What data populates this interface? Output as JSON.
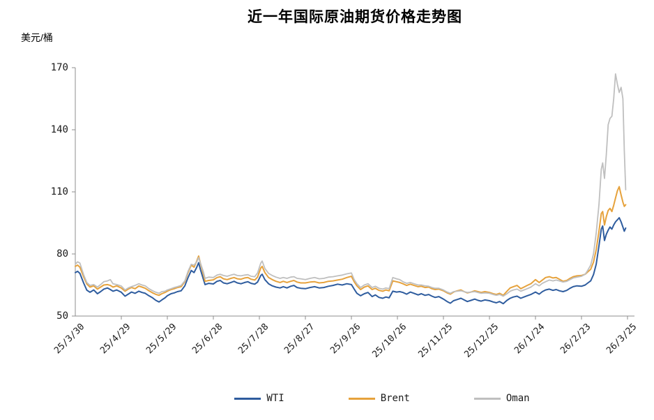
{
  "title": "近一年国际原油期货价格走势图",
  "y_axis": {
    "unit": "美元/桶",
    "ticks": [
      "170",
      "140",
      "110",
      "80",
      "50"
    ]
  },
  "x_axis": {
    "labels": [
      "25/3/30",
      "25/4/29",
      "25/5/29",
      "25/6/28",
      "25/7/28",
      "25/8/27",
      "25/9/26",
      "25/10/26",
      "25/11/25",
      "25/12/25",
      "26/1/24",
      "26/2/23",
      "26/3/25"
    ]
  },
  "legend": {
    "items": [
      {
        "label": "WTI",
        "color": "#2E5C9E"
      },
      {
        "label": "Brent",
        "color": "#E6A23C"
      },
      {
        "label": "Oman",
        "color": "#BFBFBF"
      }
    ]
  },
  "colors": {
    "axis": "#8C8C8C",
    "text": "#1A1A1A",
    "wti": "#2E5C9E",
    "brent": "#E6A23C",
    "oman": "#BFBFBF"
  },
  "chart_data": {
    "type": "line",
    "title": "近一年国际原油期货价格走势图",
    "ylabel": "美元/桶",
    "ylim": [
      50,
      170
    ],
    "y_ticks": [
      50,
      80,
      110,
      140,
      170
    ],
    "x_tick_labels": [
      "25/3/30",
      "25/4/29",
      "25/5/29",
      "25/6/28",
      "25/7/28",
      "25/8/27",
      "25/9/26",
      "25/10/26",
      "25/11/25",
      "25/12/25",
      "26/1/24",
      "26/2/23",
      "26/3/25"
    ],
    "x_unit": "months_after_25/3/30",
    "grid": false,
    "legend_position": "bottom",
    "series_names": [
      "WTI",
      "Brent",
      "Oman"
    ],
    "series_colors": {
      "WTI": "#2E5C9E",
      "Brent": "#E6A23C",
      "Oman": "#BFBFBF"
    },
    "points": [
      [
        0.0,
        71.0,
        74.0,
        75.0
      ],
      [
        0.05,
        71.6,
        74.6,
        76.2
      ],
      [
        0.1,
        70.6,
        73.6,
        75.6
      ],
      [
        0.18,
        66.0,
        69.0,
        70.0
      ],
      [
        0.25,
        62.5,
        65.5,
        66.2
      ],
      [
        0.32,
        61.5,
        64.0,
        64.8
      ],
      [
        0.4,
        62.6,
        64.6,
        65.2
      ],
      [
        0.48,
        60.8,
        63.0,
        64.0
      ],
      [
        0.55,
        61.8,
        64.0,
        65.2
      ],
      [
        0.62,
        63.0,
        65.0,
        66.6
      ],
      [
        0.7,
        63.6,
        65.2,
        67.0
      ],
      [
        0.76,
        62.8,
        64.8,
        67.6
      ],
      [
        0.82,
        62.0,
        64.0,
        65.6
      ],
      [
        0.9,
        62.6,
        64.6,
        65.2
      ],
      [
        1.0,
        61.5,
        63.5,
        64.5
      ],
      [
        1.08,
        59.6,
        62.0,
        62.6
      ],
      [
        1.15,
        60.6,
        63.0,
        63.6
      ],
      [
        1.22,
        61.6,
        63.8,
        64.2
      ],
      [
        1.3,
        61.0,
        63.2,
        64.8
      ],
      [
        1.38,
        62.0,
        64.5,
        65.6
      ],
      [
        1.45,
        61.4,
        64.0,
        65.0
      ],
      [
        1.52,
        61.0,
        63.4,
        64.6
      ],
      [
        1.6,
        59.8,
        62.2,
        63.2
      ],
      [
        1.68,
        58.8,
        61.2,
        62.2
      ],
      [
        1.75,
        57.6,
        60.5,
        61.5
      ],
      [
        1.82,
        56.8,
        60.0,
        61.0
      ],
      [
        1.88,
        57.8,
        60.8,
        61.8
      ],
      [
        1.95,
        58.8,
        61.4,
        62.0
      ],
      [
        2.0,
        59.8,
        62.0,
        62.6
      ],
      [
        2.08,
        60.8,
        62.8,
        63.2
      ],
      [
        2.15,
        61.2,
        63.2,
        63.8
      ],
      [
        2.22,
        61.8,
        63.8,
        64.2
      ],
      [
        2.3,
        62.2,
        64.2,
        64.8
      ],
      [
        2.38,
        64.6,
        66.6,
        67.0
      ],
      [
        2.45,
        68.6,
        71.0,
        71.6
      ],
      [
        2.52,
        72.0,
        74.6,
        75.0
      ],
      [
        2.58,
        71.0,
        73.6,
        74.6
      ],
      [
        2.64,
        73.6,
        76.6,
        76.2
      ],
      [
        2.68,
        75.8,
        79.0,
        78.2
      ],
      [
        2.72,
        72.4,
        75.4,
        75.6
      ],
      [
        2.78,
        68.0,
        70.4,
        71.6
      ],
      [
        2.82,
        65.2,
        66.8,
        68.2
      ],
      [
        2.9,
        65.8,
        67.2,
        68.8
      ],
      [
        3.0,
        65.5,
        67.5,
        68.6
      ],
      [
        3.08,
        66.8,
        68.6,
        69.8
      ],
      [
        3.15,
        67.2,
        69.0,
        70.2
      ],
      [
        3.22,
        66.0,
        68.0,
        69.6
      ],
      [
        3.3,
        65.6,
        67.6,
        69.2
      ],
      [
        3.38,
        66.2,
        68.2,
        69.8
      ],
      [
        3.45,
        66.8,
        68.6,
        70.2
      ],
      [
        3.52,
        66.0,
        68.0,
        69.6
      ],
      [
        3.6,
        65.6,
        67.8,
        69.4
      ],
      [
        3.68,
        66.2,
        68.4,
        69.8
      ],
      [
        3.75,
        66.6,
        68.6,
        70.0
      ],
      [
        3.82,
        65.8,
        67.8,
        69.2
      ],
      [
        3.9,
        65.4,
        67.4,
        69.0
      ],
      [
        3.96,
        66.4,
        68.8,
        70.8
      ],
      [
        4.03,
        69.6,
        73.2,
        75.6
      ],
      [
        4.06,
        70.2,
        74.0,
        76.6
      ],
      [
        4.12,
        67.6,
        71.0,
        73.0
      ],
      [
        4.2,
        65.6,
        68.6,
        70.6
      ],
      [
        4.28,
        64.6,
        67.6,
        69.6
      ],
      [
        4.36,
        64.0,
        66.8,
        68.8
      ],
      [
        4.45,
        63.6,
        66.2,
        68.2
      ],
      [
        4.52,
        64.2,
        66.8,
        68.6
      ],
      [
        4.6,
        63.6,
        66.2,
        68.2
      ],
      [
        4.68,
        64.4,
        66.8,
        68.8
      ],
      [
        4.75,
        64.8,
        67.2,
        69.0
      ],
      [
        4.82,
        63.8,
        66.4,
        68.2
      ],
      [
        4.9,
        63.4,
        66.0,
        68.0
      ],
      [
        5.0,
        63.2,
        66.0,
        67.6
      ],
      [
        5.1,
        63.8,
        66.4,
        68.2
      ],
      [
        5.2,
        64.2,
        66.6,
        68.6
      ],
      [
        5.3,
        63.6,
        66.0,
        68.0
      ],
      [
        5.4,
        63.8,
        66.2,
        68.2
      ],
      [
        5.5,
        64.4,
        66.8,
        68.8
      ],
      [
        5.6,
        64.8,
        67.0,
        69.0
      ],
      [
        5.7,
        65.4,
        67.4,
        69.4
      ],
      [
        5.8,
        65.0,
        67.8,
        69.8
      ],
      [
        5.9,
        65.6,
        68.6,
        70.4
      ],
      [
        6.0,
        65.2,
        69.2,
        70.8
      ],
      [
        6.06,
        63.0,
        66.6,
        67.6
      ],
      [
        6.12,
        61.0,
        64.6,
        65.6
      ],
      [
        6.2,
        59.8,
        62.8,
        63.8
      ],
      [
        6.28,
        60.8,
        64.0,
        65.0
      ],
      [
        6.36,
        61.4,
        64.6,
        65.6
      ],
      [
        6.45,
        59.4,
        62.8,
        63.8
      ],
      [
        6.52,
        60.2,
        63.4,
        64.4
      ],
      [
        6.6,
        59.0,
        62.4,
        63.4
      ],
      [
        6.68,
        58.6,
        62.0,
        63.0
      ],
      [
        6.75,
        59.2,
        62.6,
        63.6
      ],
      [
        6.82,
        58.8,
        62.2,
        63.2
      ],
      [
        6.9,
        62.0,
        67.0,
        68.6
      ],
      [
        6.98,
        61.6,
        66.6,
        68.0
      ],
      [
        7.05,
        61.8,
        66.2,
        67.6
      ],
      [
        7.12,
        61.4,
        65.6,
        66.6
      ],
      [
        7.2,
        60.6,
        64.8,
        65.8
      ],
      [
        7.28,
        61.6,
        65.4,
        66.2
      ],
      [
        7.36,
        61.0,
        64.8,
        65.6
      ],
      [
        7.45,
        60.2,
        64.2,
        65.0
      ],
      [
        7.52,
        60.8,
        64.4,
        65.0
      ],
      [
        7.6,
        60.0,
        63.8,
        64.6
      ],
      [
        7.68,
        60.4,
        64.0,
        64.4
      ],
      [
        7.75,
        59.6,
        63.2,
        63.8
      ],
      [
        7.82,
        59.0,
        62.8,
        63.4
      ],
      [
        7.9,
        59.4,
        63.0,
        63.4
      ],
      [
        8.0,
        58.2,
        62.2,
        62.6
      ],
      [
        8.08,
        57.0,
        61.2,
        61.6
      ],
      [
        8.15,
        56.2,
        60.6,
        61.0
      ],
      [
        8.22,
        57.4,
        61.6,
        61.8
      ],
      [
        8.3,
        58.0,
        62.2,
        62.0
      ],
      [
        8.38,
        58.6,
        62.6,
        62.2
      ],
      [
        8.45,
        57.8,
        61.8,
        61.8
      ],
      [
        8.52,
        57.0,
        61.2,
        61.4
      ],
      [
        8.6,
        57.6,
        61.6,
        61.6
      ],
      [
        8.68,
        58.2,
        62.2,
        61.8
      ],
      [
        8.75,
        57.6,
        61.8,
        61.4
      ],
      [
        8.82,
        57.2,
        61.4,
        61.0
      ],
      [
        8.9,
        57.8,
        61.8,
        61.2
      ],
      [
        9.0,
        57.4,
        61.4,
        61.0
      ],
      [
        9.08,
        56.8,
        60.8,
        60.4
      ],
      [
        9.15,
        56.4,
        60.4,
        60.0
      ],
      [
        9.22,
        57.0,
        61.0,
        60.4
      ],
      [
        9.3,
        56.0,
        60.0,
        59.6
      ],
      [
        9.38,
        57.6,
        62.0,
        60.8
      ],
      [
        9.45,
        58.6,
        63.6,
        62.0
      ],
      [
        9.52,
        59.2,
        64.2,
        62.6
      ],
      [
        9.6,
        59.6,
        64.8,
        63.0
      ],
      [
        9.68,
        58.6,
        63.2,
        62.0
      ],
      [
        9.75,
        59.2,
        64.0,
        62.6
      ],
      [
        9.82,
        59.8,
        64.8,
        63.2
      ],
      [
        9.9,
        60.4,
        65.6,
        64.0
      ],
      [
        10.0,
        61.6,
        67.6,
        65.6
      ],
      [
        10.08,
        60.6,
        66.2,
        64.6
      ],
      [
        10.15,
        61.8,
        67.4,
        65.8
      ],
      [
        10.22,
        62.6,
        68.6,
        66.6
      ],
      [
        10.3,
        63.0,
        69.0,
        67.4
      ],
      [
        10.38,
        62.4,
        68.4,
        67.0
      ],
      [
        10.45,
        62.8,
        68.6,
        67.4
      ],
      [
        10.52,
        62.2,
        67.8,
        67.0
      ],
      [
        10.6,
        61.8,
        66.8,
        66.4
      ],
      [
        10.68,
        62.4,
        67.2,
        66.8
      ],
      [
        10.75,
        63.4,
        68.2,
        67.6
      ],
      [
        10.82,
        64.2,
        69.0,
        68.4
      ],
      [
        10.9,
        64.6,
        69.4,
        68.8
      ],
      [
        11.0,
        64.4,
        69.6,
        69.2
      ],
      [
        11.08,
        65.0,
        70.2,
        70.2
      ],
      [
        11.14,
        66.0,
        71.4,
        72.2
      ],
      [
        11.2,
        67.0,
        72.6,
        74.6
      ],
      [
        11.26,
        70.0,
        76.0,
        80.0
      ],
      [
        11.32,
        75.0,
        82.0,
        90.0
      ],
      [
        11.38,
        84.0,
        91.0,
        104.0
      ],
      [
        11.43,
        92.0,
        99.5,
        121.0
      ],
      [
        11.46,
        93.5,
        100.5,
        124.0
      ],
      [
        11.5,
        86.5,
        94.0,
        116.5
      ],
      [
        11.54,
        89.5,
        98.0,
        128.0
      ],
      [
        11.58,
        91.5,
        101.0,
        142.5
      ],
      [
        11.62,
        93.0,
        102.0,
        145.5
      ],
      [
        11.66,
        92.0,
        100.5,
        146.5
      ],
      [
        11.7,
        94.0,
        103.5,
        155.0
      ],
      [
        11.74,
        95.5,
        107.0,
        167.0
      ],
      [
        11.78,
        96.5,
        110.5,
        162.0
      ],
      [
        11.82,
        97.5,
        112.5,
        158.0
      ],
      [
        11.86,
        95.5,
        108.5,
        160.5
      ],
      [
        11.9,
        93.0,
        105.0,
        155.0
      ],
      [
        11.93,
        91.0,
        103.0,
        130.0
      ],
      [
        11.96,
        92.5,
        103.8,
        111.0
      ]
    ]
  }
}
